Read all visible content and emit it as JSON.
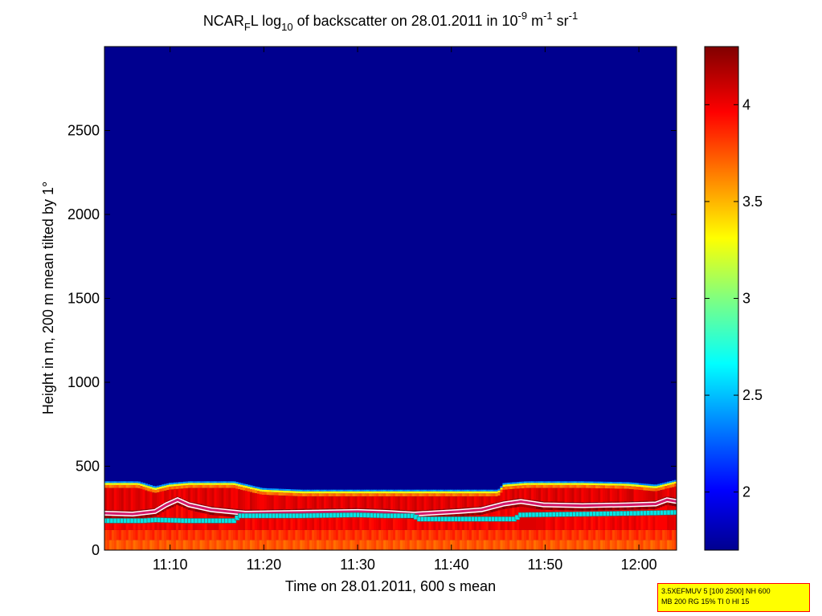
{
  "chart_data": {
    "type": "heatmap",
    "title_parts": {
      "a": "NCAR",
      "a_sub": "F",
      "b": "L log",
      "b_sub": "10",
      "c": " of backscatter on 28.01.2011 in 10",
      "c_sup": "-9",
      "d": " m",
      "d_sup": "-1",
      "e": " sr",
      "e_sup": "-1"
    },
    "xlabel": "Time on 28.01.2011, 600 s mean",
    "ylabel": "Height in m, 200 m mean tilted by 1°",
    "xlim": [
      11.05,
      12.067
    ],
    "ylim": [
      0,
      3000
    ],
    "x_ticks": [
      11.1667,
      11.3333,
      11.5,
      11.6667,
      11.8333,
      12.0
    ],
    "x_tick_labels": [
      "11:10",
      "11:20",
      "11:30",
      "11:40",
      "11:50",
      "12:00"
    ],
    "y_ticks": [
      0,
      500,
      1000,
      1500,
      2000,
      2500
    ],
    "y_tick_labels": [
      "0",
      "500",
      "1000",
      "1500",
      "2000",
      "2500"
    ],
    "colorbar": {
      "clim": [
        1.7,
        4.3
      ],
      "ticks": [
        2,
        2.5,
        3,
        3.5,
        4
      ],
      "tick_labels": [
        "2",
        "2.5",
        "3",
        "3.5",
        "4"
      ]
    },
    "background_value": 1.75,
    "layer_top_height": [
      [
        11.05,
        410
      ],
      [
        11.11,
        410
      ],
      [
        11.14,
        380
      ],
      [
        11.165,
        400
      ],
      [
        11.2,
        410
      ],
      [
        11.28,
        410
      ],
      [
        11.33,
        370
      ],
      [
        11.4,
        360
      ],
      [
        11.5,
        360
      ],
      [
        11.6,
        360
      ],
      [
        11.7,
        360
      ],
      [
        11.75,
        360
      ],
      [
        11.76,
        400
      ],
      [
        11.8,
        410
      ],
      [
        11.9,
        410
      ],
      [
        11.98,
        405
      ],
      [
        12.03,
        390
      ],
      [
        12.067,
        420
      ]
    ],
    "aerosol_layer_height_red": [
      [
        11.05,
        220
      ],
      [
        11.1,
        215
      ],
      [
        11.14,
        230
      ],
      [
        11.16,
        270
      ],
      [
        11.18,
        300
      ],
      [
        11.2,
        270
      ],
      [
        11.24,
        240
      ],
      [
        11.3,
        220
      ],
      [
        11.4,
        225
      ],
      [
        11.5,
        230
      ],
      [
        11.55,
        225
      ],
      [
        11.6,
        215
      ],
      [
        11.68,
        230
      ],
      [
        11.72,
        240
      ],
      [
        11.76,
        275
      ],
      [
        11.79,
        290
      ],
      [
        11.83,
        270
      ],
      [
        11.9,
        265
      ],
      [
        11.98,
        270
      ],
      [
        12.03,
        275
      ],
      [
        12.05,
        300
      ],
      [
        12.067,
        290
      ]
    ],
    "mixing_height_cyan": [
      [
        11.05,
        175
      ],
      [
        11.12,
        175
      ],
      [
        11.14,
        180
      ],
      [
        11.2,
        175
      ],
      [
        11.28,
        175
      ],
      [
        11.29,
        205
      ],
      [
        11.4,
        205
      ],
      [
        11.5,
        210
      ],
      [
        11.55,
        205
      ],
      [
        11.6,
        205
      ],
      [
        11.61,
        185
      ],
      [
        11.7,
        185
      ],
      [
        11.78,
        185
      ],
      [
        11.79,
        210
      ],
      [
        11.9,
        215
      ],
      [
        12.0,
        220
      ],
      [
        12.067,
        225
      ]
    ],
    "info_box": [
      "3.5XEFMUV 5 [100 2500] NH 600",
      "MB 200 RG 15% TI 0 HI 15"
    ]
  }
}
